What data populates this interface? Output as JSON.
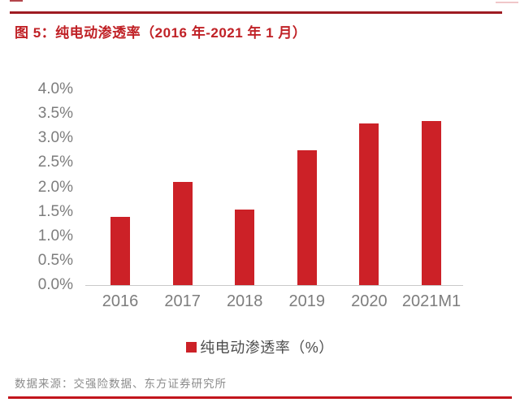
{
  "header": {
    "title": "图 5：纯电动渗透率（2016 年-2021 年 1 月）"
  },
  "chart_data": {
    "type": "bar",
    "title": "纯电动渗透率（2016 年-2021 年 1 月）",
    "categories": [
      "2016",
      "2017",
      "2018",
      "2019",
      "2020",
      "2021M1"
    ],
    "values": [
      1.4,
      2.1,
      1.55,
      2.75,
      3.3,
      3.35
    ],
    "series_name": "纯电动渗透率（%）",
    "xlabel": "",
    "ylabel": "",
    "ylim": [
      0,
      4.0
    ],
    "ytick_step": 0.5,
    "ytick_labels": [
      "0.0%",
      "0.5%",
      "1.0%",
      "1.5%",
      "2.0%",
      "2.5%",
      "3.0%",
      "3.5%",
      "4.0%"
    ],
    "grid": false,
    "legend_position": "bottom",
    "bar_color": "#cc2127"
  },
  "legend": {
    "marker_color": "#cc2127",
    "label": "纯电动渗透率（%）"
  },
  "footer": {
    "source": "数据来源：交强险数据、东方证券研究所"
  },
  "colors": {
    "title_red": "#c02126",
    "bar_red": "#cc2127",
    "rule_top_red": "#9e1b22",
    "rule_bottom_red": "#c2151c",
    "axis_text_gray": "#7d7d7d",
    "legend_text_gray": "#4d4d4d",
    "source_text_gray": "#8c8c8c",
    "axis_line_gray": "#c9c9c9"
  }
}
